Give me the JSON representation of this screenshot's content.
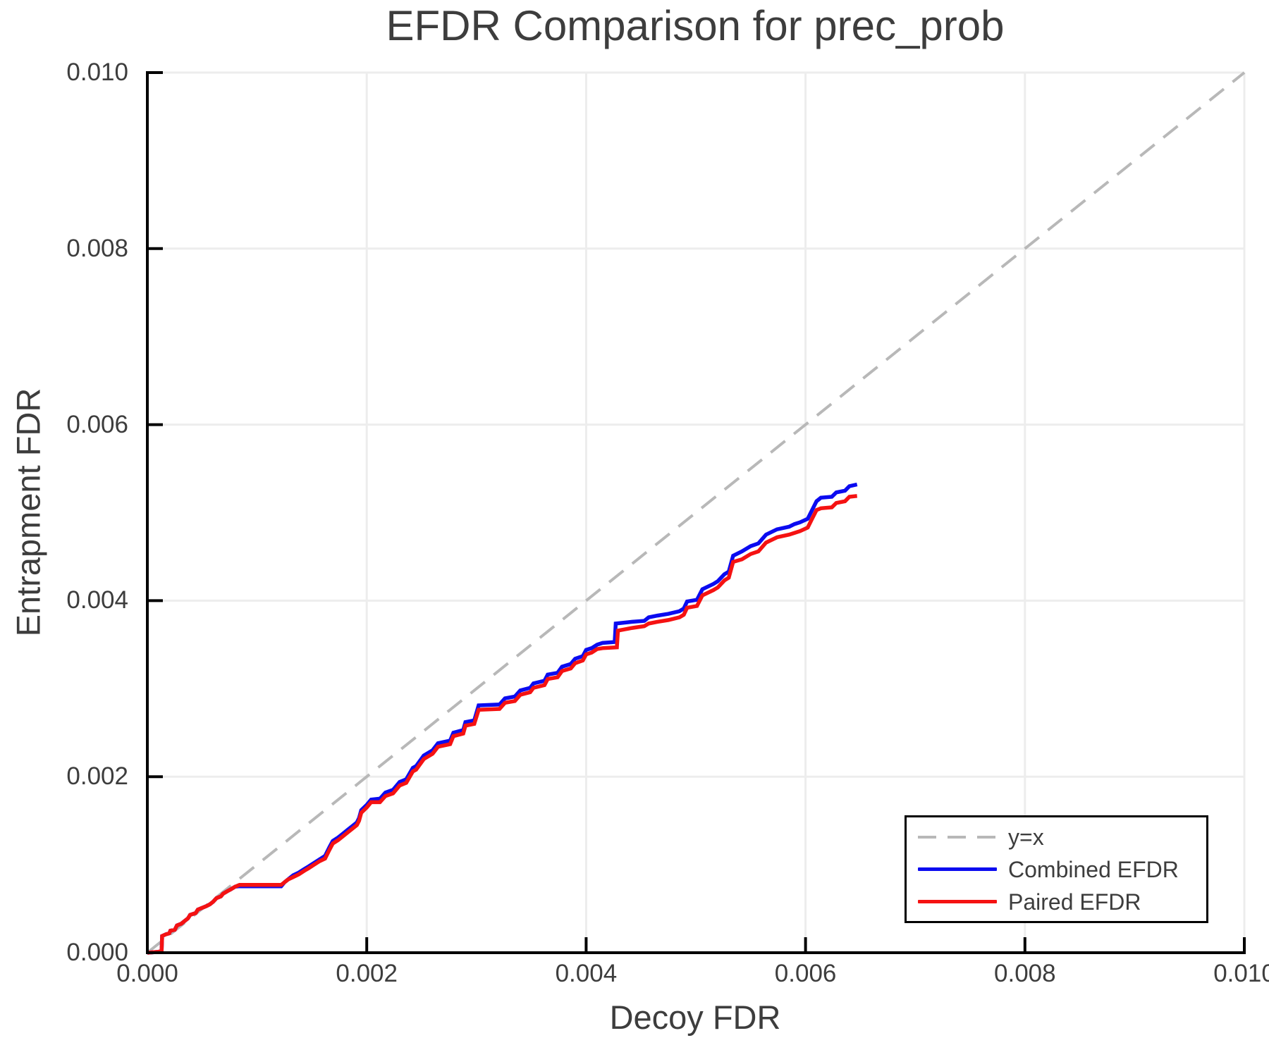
{
  "chart_data": {
    "type": "line",
    "title": "EFDR Comparison for prec_prob",
    "xlabel": "Decoy FDR",
    "ylabel": "Entrapment FDR",
    "xlim": [
      0.0,
      0.01
    ],
    "ylim": [
      0.0,
      0.01
    ],
    "x_ticks": [
      0.0,
      0.002,
      0.004,
      0.006,
      0.008,
      0.01
    ],
    "x_tick_labels": [
      "0.000",
      "0.002",
      "0.004",
      "0.006",
      "0.008",
      "0.010"
    ],
    "y_ticks": [
      0.0,
      0.002,
      0.004,
      0.006,
      0.008,
      0.01
    ],
    "y_tick_labels": [
      "0.000",
      "0.002",
      "0.004",
      "0.006",
      "0.008",
      "0.010"
    ],
    "grid": true,
    "grid_color": "#ededed",
    "axis_color": "#000000",
    "text_color": "#3d3d3d",
    "legend_position": "lower right",
    "series": [
      {
        "name": "y=x",
        "style": "dashed",
        "color": "#b8b8b8",
        "points": [
          [
            0.0,
            0.0
          ],
          [
            0.01,
            0.01
          ]
        ]
      },
      {
        "name": "Combined EFDR",
        "style": "solid",
        "color": "#0b0bf0",
        "points": [
          [
            0.0,
            0.0
          ],
          [
            0.0001,
            1e-05
          ],
          [
            0.00013,
            2e-05
          ],
          [
            0.000135,
            0.00019
          ],
          [
            0.00017,
            0.00021
          ],
          [
            0.0002,
            0.00022
          ],
          [
            0.00021,
            0.00025
          ],
          [
            0.00025,
            0.00026
          ],
          [
            0.00027,
            0.00031
          ],
          [
            0.00031,
            0.00033
          ],
          [
            0.00034,
            0.00036
          ],
          [
            0.00037,
            0.00039
          ],
          [
            0.00039,
            0.00043
          ],
          [
            0.00044,
            0.00045
          ],
          [
            0.00046,
            0.00049
          ],
          [
            0.0005,
            0.00051
          ],
          [
            0.00054,
            0.00053
          ],
          [
            0.00057,
            0.00055
          ],
          [
            0.0006,
            0.00058
          ],
          [
            0.00063,
            0.00062
          ],
          [
            0.00067,
            0.00064
          ],
          [
            0.00069,
            0.00067
          ],
          [
            0.00073,
            0.0007
          ],
          [
            0.00076,
            0.00072
          ],
          [
            0.0008,
            0.00075
          ],
          [
            0.00084,
            0.000755
          ],
          [
            0.00122,
            0.000755
          ],
          [
            0.00125,
            0.0008
          ],
          [
            0.00128,
            0.00083
          ],
          [
            0.00133,
            0.00088
          ],
          [
            0.00138,
            0.00091
          ],
          [
            0.00143,
            0.00095
          ],
          [
            0.00147,
            0.00098
          ],
          [
            0.00152,
            0.00102
          ],
          [
            0.00157,
            0.00106
          ],
          [
            0.00162,
            0.0011
          ],
          [
            0.00166,
            0.0012
          ],
          [
            0.00169,
            0.00127
          ],
          [
            0.00174,
            0.00131
          ],
          [
            0.00178,
            0.00135
          ],
          [
            0.00183,
            0.0014
          ],
          [
            0.00187,
            0.00144
          ],
          [
            0.00191,
            0.00148
          ],
          [
            0.00193,
            0.00153
          ],
          [
            0.00195,
            0.00162
          ],
          [
            0.002,
            0.00168
          ],
          [
            0.00204,
            0.00174
          ],
          [
            0.00212,
            0.00175
          ],
          [
            0.00217,
            0.00182
          ],
          [
            0.00224,
            0.00185
          ],
          [
            0.0023,
            0.00194
          ],
          [
            0.00236,
            0.00197
          ],
          [
            0.00242,
            0.0021
          ],
          [
            0.00245,
            0.00212
          ],
          [
            0.00252,
            0.00224
          ],
          [
            0.0026,
            0.0023
          ],
          [
            0.00265,
            0.00238
          ],
          [
            0.00276,
            0.00241
          ],
          [
            0.00279,
            0.0025
          ],
          [
            0.00288,
            0.00253
          ],
          [
            0.0029,
            0.00262
          ],
          [
            0.00298,
            0.00264
          ],
          [
            0.00302,
            0.00281
          ],
          [
            0.00321,
            0.00282
          ],
          [
            0.00326,
            0.00289
          ],
          [
            0.00335,
            0.00291
          ],
          [
            0.0034,
            0.00298
          ],
          [
            0.00349,
            0.00301
          ],
          [
            0.00352,
            0.00306
          ],
          [
            0.00362,
            0.00309
          ],
          [
            0.00365,
            0.00316
          ],
          [
            0.00374,
            0.00318
          ],
          [
            0.00378,
            0.00325
          ],
          [
            0.00386,
            0.00328
          ],
          [
            0.0039,
            0.00334
          ],
          [
            0.00397,
            0.00337
          ],
          [
            0.004,
            0.00344
          ],
          [
            0.00405,
            0.00346
          ],
          [
            0.0041,
            0.0035
          ],
          [
            0.00415,
            0.00352
          ],
          [
            0.00426,
            0.00353
          ],
          [
            0.00427,
            0.00374
          ],
          [
            0.00442,
            0.00376
          ],
          [
            0.00453,
            0.00377
          ],
          [
            0.00457,
            0.00381
          ],
          [
            0.00465,
            0.00383
          ],
          [
            0.00475,
            0.00385
          ],
          [
            0.00485,
            0.00388
          ],
          [
            0.00489,
            0.00391
          ],
          [
            0.00492,
            0.00399
          ],
          [
            0.00501,
            0.00401
          ],
          [
            0.00506,
            0.00413
          ],
          [
            0.00516,
            0.00419
          ],
          [
            0.0052,
            0.00422
          ],
          [
            0.00526,
            0.0043
          ],
          [
            0.0053,
            0.00433
          ],
          [
            0.00534,
            0.00451
          ],
          [
            0.00542,
            0.00456
          ],
          [
            0.0055,
            0.00462
          ],
          [
            0.00557,
            0.00465
          ],
          [
            0.00564,
            0.00475
          ],
          [
            0.00574,
            0.00481
          ],
          [
            0.00585,
            0.00484
          ],
          [
            0.0059,
            0.00487
          ],
          [
            0.00595,
            0.00489
          ],
          [
            0.00602,
            0.00493
          ],
          [
            0.00606,
            0.00503
          ],
          [
            0.0061,
            0.00513
          ],
          [
            0.00614,
            0.00517
          ],
          [
            0.00624,
            0.00518
          ],
          [
            0.00628,
            0.00523
          ],
          [
            0.00636,
            0.00525
          ],
          [
            0.0064,
            0.0053
          ],
          [
            0.00647,
            0.00532
          ]
        ]
      },
      {
        "name": "Paired EFDR",
        "style": "solid",
        "color": "#f51212",
        "points": [
          [
            0.0,
            0.0
          ],
          [
            0.0001,
            1e-05
          ],
          [
            0.00013,
            2e-05
          ],
          [
            0.000135,
            0.00019
          ],
          [
            0.00017,
            0.00021
          ],
          [
            0.0002,
            0.00022
          ],
          [
            0.00021,
            0.00025
          ],
          [
            0.00025,
            0.00026
          ],
          [
            0.00027,
            0.00031
          ],
          [
            0.00031,
            0.00033
          ],
          [
            0.00034,
            0.00036
          ],
          [
            0.00037,
            0.00039
          ],
          [
            0.00039,
            0.00043
          ],
          [
            0.00044,
            0.00045
          ],
          [
            0.00046,
            0.00049
          ],
          [
            0.0005,
            0.00051
          ],
          [
            0.00054,
            0.00053
          ],
          [
            0.00057,
            0.00055
          ],
          [
            0.0006,
            0.00058
          ],
          [
            0.00063,
            0.00062
          ],
          [
            0.00067,
            0.00064
          ],
          [
            0.00069,
            0.00067
          ],
          [
            0.00073,
            0.0007
          ],
          [
            0.00076,
            0.00072
          ],
          [
            0.0008,
            0.00075
          ],
          [
            0.00084,
            0.00077
          ],
          [
            0.00122,
            0.00077
          ],
          [
            0.00125,
            0.0008
          ],
          [
            0.00128,
            0.00083
          ],
          [
            0.00133,
            0.00086
          ],
          [
            0.00138,
            0.00089
          ],
          [
            0.00143,
            0.00093
          ],
          [
            0.00147,
            0.00096
          ],
          [
            0.00152,
            0.001
          ],
          [
            0.00157,
            0.00104
          ],
          [
            0.00162,
            0.00107
          ],
          [
            0.00166,
            0.00117
          ],
          [
            0.00169,
            0.00124
          ],
          [
            0.00174,
            0.00128
          ],
          [
            0.00178,
            0.00132
          ],
          [
            0.00183,
            0.00137
          ],
          [
            0.00187,
            0.00141
          ],
          [
            0.00191,
            0.00145
          ],
          [
            0.00193,
            0.0015
          ],
          [
            0.00195,
            0.00159
          ],
          [
            0.002,
            0.00165
          ],
          [
            0.00204,
            0.00171
          ],
          [
            0.00212,
            0.00171
          ],
          [
            0.00217,
            0.00178
          ],
          [
            0.00224,
            0.00181
          ],
          [
            0.0023,
            0.0019
          ],
          [
            0.00236,
            0.00193
          ],
          [
            0.00242,
            0.00206
          ],
          [
            0.00245,
            0.00208
          ],
          [
            0.00252,
            0.0022
          ],
          [
            0.0026,
            0.00226
          ],
          [
            0.00265,
            0.00234
          ],
          [
            0.00276,
            0.00237
          ],
          [
            0.00279,
            0.00246
          ],
          [
            0.00288,
            0.00249
          ],
          [
            0.0029,
            0.00258
          ],
          [
            0.00298,
            0.0026
          ],
          [
            0.00302,
            0.00276
          ],
          [
            0.00321,
            0.00277
          ],
          [
            0.00326,
            0.00284
          ],
          [
            0.00335,
            0.00286
          ],
          [
            0.0034,
            0.00293
          ],
          [
            0.00349,
            0.00296
          ],
          [
            0.00352,
            0.00301
          ],
          [
            0.00362,
            0.00304
          ],
          [
            0.00365,
            0.00311
          ],
          [
            0.00374,
            0.00313
          ],
          [
            0.00378,
            0.0032
          ],
          [
            0.00386,
            0.00323
          ],
          [
            0.0039,
            0.00329
          ],
          [
            0.00397,
            0.00332
          ],
          [
            0.004,
            0.00339
          ],
          [
            0.00405,
            0.00341
          ],
          [
            0.0041,
            0.00345
          ],
          [
            0.00415,
            0.00346
          ],
          [
            0.00428,
            0.00347
          ],
          [
            0.00429,
            0.00366
          ],
          [
            0.00442,
            0.00369
          ],
          [
            0.00453,
            0.00371
          ],
          [
            0.00457,
            0.00374
          ],
          [
            0.00465,
            0.00376
          ],
          [
            0.00475,
            0.00378
          ],
          [
            0.00485,
            0.00381
          ],
          [
            0.00489,
            0.00384
          ],
          [
            0.00492,
            0.00392
          ],
          [
            0.00501,
            0.00394
          ],
          [
            0.00506,
            0.00406
          ],
          [
            0.00516,
            0.00412
          ],
          [
            0.0052,
            0.00415
          ],
          [
            0.00526,
            0.00423
          ],
          [
            0.0053,
            0.00426
          ],
          [
            0.00534,
            0.00444
          ],
          [
            0.00542,
            0.00447
          ],
          [
            0.0055,
            0.00453
          ],
          [
            0.00557,
            0.00456
          ],
          [
            0.00564,
            0.00466
          ],
          [
            0.00574,
            0.00472
          ],
          [
            0.00585,
            0.00475
          ],
          [
            0.0059,
            0.00477
          ],
          [
            0.00595,
            0.00479
          ],
          [
            0.00602,
            0.00483
          ],
          [
            0.00606,
            0.00493
          ],
          [
            0.0061,
            0.00503
          ],
          [
            0.00614,
            0.00505
          ],
          [
            0.00624,
            0.00506
          ],
          [
            0.00628,
            0.00511
          ],
          [
            0.00636,
            0.00513
          ],
          [
            0.0064,
            0.00518
          ],
          [
            0.00647,
            0.00519
          ]
        ]
      }
    ]
  }
}
